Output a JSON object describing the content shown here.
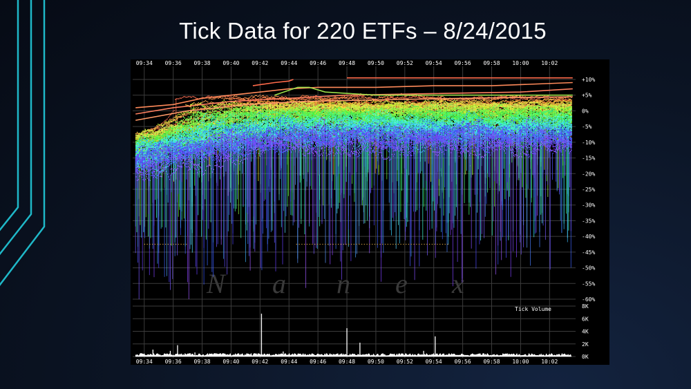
{
  "slide": {
    "title": "Tick Data for 220 ETFs – 8/24/2015",
    "accent_color": "#1fb8c8",
    "background_color": "#0b1424"
  },
  "chart_data": {
    "type": "scatter",
    "title": "",
    "x_ticks": [
      "09:34",
      "09:36",
      "09:38",
      "09:40",
      "09:42",
      "09:44",
      "09:46",
      "09:48",
      "09:50",
      "09:52",
      "09:54",
      "09:56",
      "09:58",
      "10:00",
      "10:02"
    ],
    "y_ticks": [
      "+10%",
      "+5%",
      "0%",
      "-5%",
      "-10%",
      "-15%",
      "-20%",
      "-25%",
      "-30%",
      "-35%",
      "-40%",
      "-45%",
      "-50%",
      "-55%",
      "-60%"
    ],
    "ylim": [
      -60,
      10
    ],
    "xlim_minutes": [
      33.2,
      63.8
    ],
    "grid": true,
    "watermark_letters": [
      "N",
      "a",
      "n",
      "e",
      "x"
    ],
    "upper_series_count": 220,
    "volume_panel": {
      "label": "Tick Volume",
      "y_ticks": [
        "8K",
        "6K",
        "4K",
        "2K",
        "0K"
      ],
      "ylim": [
        0,
        8000
      ],
      "spikes": [
        {
          "t": 34.6,
          "v": 1100
        },
        {
          "t": 35.8,
          "v": 900
        },
        {
          "t": 36.3,
          "v": 1800
        },
        {
          "t": 37.5,
          "v": 650
        },
        {
          "t": 39.0,
          "v": 500
        },
        {
          "t": 41.2,
          "v": 450
        },
        {
          "t": 42.1,
          "v": 6800
        },
        {
          "t": 43.6,
          "v": 800
        },
        {
          "t": 48.0,
          "v": 4500
        },
        {
          "t": 48.9,
          "v": 2200
        },
        {
          "t": 51.0,
          "v": 450
        },
        {
          "t": 53.3,
          "v": 900
        },
        {
          "t": 54.1,
          "v": 3200
        },
        {
          "t": 57.2,
          "v": 500
        },
        {
          "t": 62.0,
          "v": 400
        }
      ],
      "baseline": 250
    }
  }
}
